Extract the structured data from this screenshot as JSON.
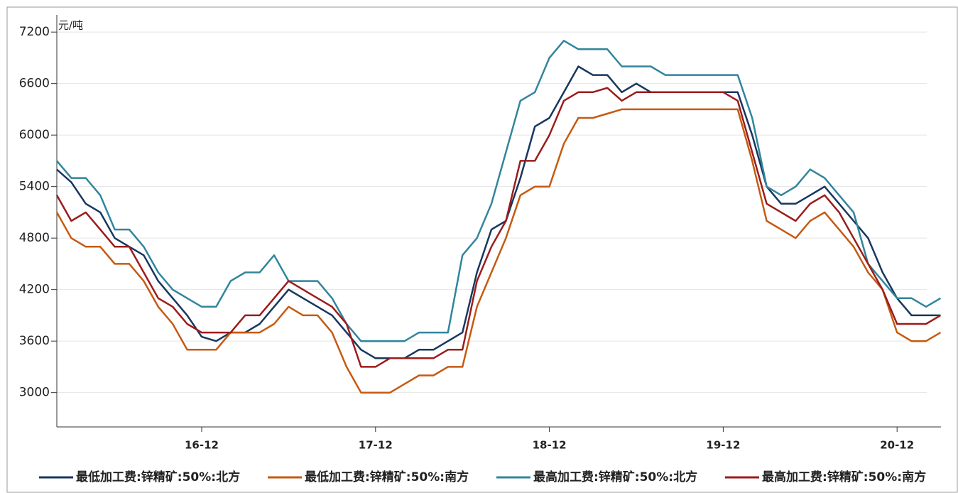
{
  "chart_data": {
    "type": "line",
    "y_unit": "元/吨",
    "categories": [
      null,
      null,
      null,
      null,
      null,
      null,
      null,
      null,
      null,
      null,
      "16-12",
      null,
      null,
      null,
      null,
      null,
      null,
      null,
      null,
      null,
      null,
      null,
      "17-12",
      null,
      null,
      null,
      null,
      null,
      null,
      null,
      null,
      null,
      null,
      null,
      "18-12",
      null,
      null,
      null,
      null,
      null,
      null,
      null,
      null,
      null,
      null,
      null,
      "19-12",
      null,
      null,
      null,
      null,
      null,
      null,
      null,
      null,
      null,
      null,
      null,
      "20-12",
      null,
      null,
      null
    ],
    "series": [
      {
        "name": "最低加工费:锌精矿:50%:北方",
        "color": "#17375e",
        "values": [
          5600,
          5450,
          5200,
          5100,
          4800,
          4700,
          4600,
          4300,
          4100,
          3900,
          3650,
          3600,
          3700,
          3700,
          3800,
          4000,
          4200,
          4100,
          4000,
          3900,
          3700,
          3500,
          3400,
          3400,
          3400,
          3500,
          3500,
          3600,
          3700,
          4400,
          4900,
          5000,
          5500,
          6100,
          6200,
          6500,
          6800,
          6700,
          6700,
          6500,
          6600,
          6500,
          6500,
          6500,
          6500,
          6500,
          6500,
          6500,
          6000,
          5400,
          5200,
          5200,
          5300,
          5400,
          5200,
          5000,
          4800,
          4400,
          4100,
          3900,
          3900,
          3900
        ]
      },
      {
        "name": "最低加工费:锌精矿:50%:南方",
        "color": "#c55a11",
        "values": [
          5100,
          4800,
          4700,
          4700,
          4500,
          4500,
          4300,
          4000,
          3800,
          3500,
          3500,
          3500,
          3700,
          3700,
          3700,
          3800,
          4000,
          3900,
          3900,
          3700,
          3300,
          3000,
          3000,
          3000,
          3100,
          3200,
          3200,
          3300,
          3300,
          4000,
          4400,
          4800,
          5300,
          5400,
          5400,
          5900,
          6200,
          6200,
          6250,
          6300,
          6300,
          6300,
          6300,
          6300,
          6300,
          6300,
          6300,
          6300,
          5700,
          5000,
          4900,
          4800,
          5000,
          5100,
          4900,
          4700,
          4400,
          4200,
          3700,
          3600,
          3600,
          3700
        ]
      },
      {
        "name": "最高加工费:锌精矿:50%:北方",
        "color": "#31859c",
        "values": [
          5700,
          5500,
          5500,
          5300,
          4900,
          4900,
          4700,
          4400,
          4200,
          4100,
          4000,
          4000,
          4300,
          4400,
          4400,
          4600,
          4300,
          4300,
          4300,
          4100,
          3800,
          3600,
          3600,
          3600,
          3600,
          3700,
          3700,
          3700,
          4600,
          4800,
          5200,
          5800,
          6400,
          6500,
          6900,
          7100,
          7000,
          7000,
          7000,
          6800,
          6800,
          6800,
          6700,
          6700,
          6700,
          6700,
          6700,
          6700,
          6200,
          5400,
          5300,
          5400,
          5600,
          5500,
          5300,
          5100,
          4500,
          4300,
          4100,
          4100,
          4000,
          4100
        ]
      },
      {
        "name": "最高加工费:锌精矿:50%:南方",
        "color": "#9b1c1c",
        "values": [
          5300,
          5000,
          5100,
          4900,
          4700,
          4700,
          4400,
          4100,
          4000,
          3800,
          3700,
          3700,
          3700,
          3900,
          3900,
          4100,
          4300,
          4200,
          4100,
          4000,
          3800,
          3300,
          3300,
          3400,
          3400,
          3400,
          3400,
          3500,
          3500,
          4300,
          4700,
          5000,
          5700,
          5700,
          6000,
          6400,
          6500,
          6500,
          6550,
          6400,
          6500,
          6500,
          6500,
          6500,
          6500,
          6500,
          6500,
          6400,
          5800,
          5200,
          5100,
          5000,
          5200,
          5300,
          5100,
          4800,
          4500,
          4200,
          3800,
          3800,
          3800,
          3900
        ]
      }
    ],
    "ylim": [
      2600,
      7400
    ],
    "yticks": [
      3000,
      3600,
      4200,
      4800,
      5400,
      6000,
      6600,
      7200
    ],
    "grid": true,
    "legend": "bottom"
  }
}
